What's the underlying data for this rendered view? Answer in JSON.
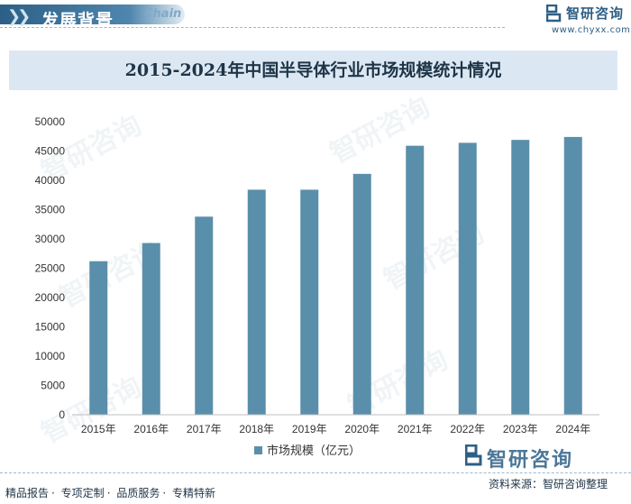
{
  "header": {
    "title": "发展背景",
    "subtitle_en": "Chain",
    "brand_name": "智研咨询",
    "brand_url": "www.chyxx.com"
  },
  "chart_data": {
    "type": "bar",
    "title": "2015-2024年中国半导体行业市场规模统计情况",
    "categories": [
      "2015年",
      "2016年",
      "2017年",
      "2018年",
      "2019年",
      "2020年",
      "2021年",
      "2022年",
      "2023年",
      "2024年"
    ],
    "series": [
      {
        "name": "市场规模（亿元）",
        "values": [
          26200,
          29300,
          33800,
          38400,
          38400,
          41100,
          45900,
          46400,
          46900,
          47400
        ]
      }
    ],
    "ylim": [
      0,
      50000
    ],
    "yticks": [
      "0",
      "5000",
      "10000",
      "15000",
      "20000",
      "25000",
      "30000",
      "35000",
      "40000",
      "45000",
      "50000"
    ],
    "grid": false,
    "legend": "bottom-center",
    "bar_color": "#5a8fab"
  },
  "footer": {
    "items": [
      "精品报告",
      "专项定制",
      "品质服务",
      "专精特新"
    ],
    "source": "资料来源：智研咨询整理",
    "brand_name": "智研咨询",
    "watermark": "智研咨询"
  }
}
